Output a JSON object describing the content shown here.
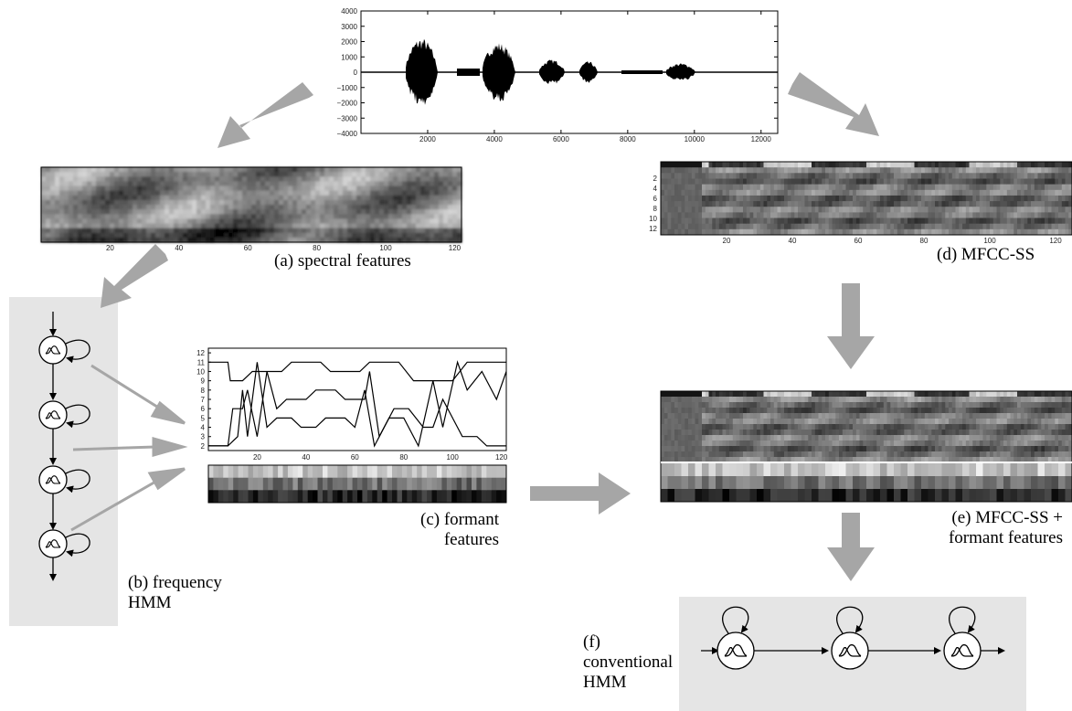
{
  "captions": {
    "a": "(a) spectral features",
    "b_line1": "(b) frequency",
    "b_line2": "HMM",
    "c_line1": "(c) formant",
    "c_line2": "features",
    "d": "(d) MFCC-SS",
    "e_line1": "(e) MFCC-SS +",
    "e_line2": "formant features",
    "f_line1": "(f)",
    "f_line2": "conventional",
    "f_line3": "HMM"
  },
  "waveform": {
    "y_ticks": [
      "4000",
      "3000",
      "2000",
      "1000",
      "0",
      "−1000",
      "−2000",
      "−3000",
      "−4000"
    ],
    "x_ticks": [
      "2000",
      "4000",
      "6000",
      "8000",
      "10000",
      "12000"
    ]
  },
  "spectral_plot": {
    "x_ticks": [
      "20",
      "40",
      "60",
      "80",
      "100",
      "120"
    ]
  },
  "mfcc_plot": {
    "y_ticks": [
      "2",
      "4",
      "6",
      "8",
      "10",
      "12"
    ],
    "x_ticks": [
      "20",
      "40",
      "60",
      "80",
      "100",
      "120"
    ]
  },
  "formant_plot": {
    "y_ticks": [
      "12",
      "11",
      "10",
      "9",
      "8",
      "7",
      "6",
      "5",
      "4",
      "3",
      "2"
    ],
    "x_ticks": [
      "20",
      "40",
      "60",
      "80",
      "100",
      "120"
    ]
  },
  "colors": {
    "arrow": "#a6a6a6",
    "panel": "#e5e5e5",
    "line": "#000000"
  }
}
